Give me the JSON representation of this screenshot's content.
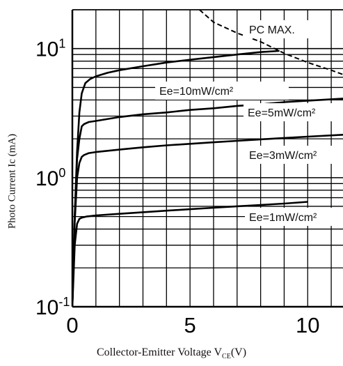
{
  "chart_data": {
    "type": "line",
    "xlabel": "Collector-Emitter Voltage V_CE(V)",
    "ylabel": "Photo Current Ic (mA)",
    "xlabel_parts": {
      "main": "Collector-Emitter Voltage V",
      "sub": "CE",
      "unit": "(V)"
    },
    "y_scale": "log",
    "xlim": [
      0,
      11.5
    ],
    "ylim": [
      0.1,
      20
    ],
    "grid": true,
    "x_ticks": [
      {
        "value": 0,
        "label": "0"
      },
      {
        "value": 5,
        "label": "5"
      },
      {
        "value": 10,
        "label": "10"
      }
    ],
    "y_ticks": [
      {
        "value": 0.1,
        "base": "10",
        "exp": "-1"
      },
      {
        "value": 1,
        "base": "10",
        "exp": "0"
      },
      {
        "value": 10,
        "base": "10",
        "exp": "1"
      }
    ],
    "series": [
      {
        "name": "Ee=10mW/cm²",
        "x": [
          0,
          0.1,
          0.2,
          0.3,
          0.4,
          0.55,
          0.75,
          1.0,
          1.5,
          2,
          3,
          4,
          5,
          6,
          7,
          8,
          8.8
        ],
        "y": [
          0.1,
          0.5,
          1.6,
          3.2,
          4.5,
          5.4,
          5.8,
          6.1,
          6.5,
          6.8,
          7.3,
          7.8,
          8.2,
          8.6,
          9.0,
          9.4,
          9.6
        ]
      },
      {
        "name": "Ee=5mW/cm²",
        "x": [
          0,
          0.1,
          0.2,
          0.3,
          0.4,
          0.5,
          0.7,
          1.0,
          2,
          3,
          4,
          5,
          6,
          7,
          8,
          9,
          10,
          11.5
        ],
        "y": [
          0.1,
          0.5,
          1.4,
          2.0,
          2.5,
          2.6,
          2.7,
          2.75,
          2.95,
          3.1,
          3.2,
          3.35,
          3.45,
          3.6,
          3.7,
          3.85,
          3.95,
          4.1
        ]
      },
      {
        "name": "Ee=3mW/cm²",
        "x": [
          0,
          0.1,
          0.2,
          0.3,
          0.4,
          0.5,
          0.7,
          1.0,
          2,
          3,
          4,
          5,
          6,
          7,
          8,
          9,
          10,
          11.5
        ],
        "y": [
          0.1,
          0.45,
          1.0,
          1.3,
          1.45,
          1.5,
          1.55,
          1.58,
          1.65,
          1.72,
          1.78,
          1.83,
          1.88,
          1.93,
          1.98,
          2.03,
          2.08,
          2.15
        ]
      },
      {
        "name": "Ee=1mW/cm²",
        "x": [
          0,
          0.1,
          0.2,
          0.3,
          0.4,
          0.6,
          1.0,
          2,
          3,
          4,
          5,
          6,
          7,
          8,
          9,
          10
        ],
        "y": [
          0.1,
          0.3,
          0.44,
          0.48,
          0.49,
          0.5,
          0.51,
          0.525,
          0.54,
          0.555,
          0.57,
          0.585,
          0.6,
          0.615,
          0.63,
          0.65
        ]
      },
      {
        "name": "PC MAX.",
        "dashed": true,
        "x": [
          5.4,
          6,
          7,
          8,
          9,
          10,
          11,
          11.5
        ],
        "y": [
          20,
          16,
          13.2,
          11.3,
          9.2,
          7.8,
          6.8,
          6.3
        ]
      }
    ],
    "annotations": [
      {
        "text": "PC MAX.",
        "series": "PC MAX."
      },
      {
        "text": "Ee=10mW/cm²",
        "series": "Ee=10mW/cm²"
      },
      {
        "text": "Ee=5mW/cm²",
        "series": "Ee=5mW/cm²"
      },
      {
        "text": "Ee=3mW/cm²",
        "series": "Ee=3mW/cm²"
      },
      {
        "text": "Ee=1mW/cm²",
        "series": "Ee=1mW/cm²"
      }
    ]
  }
}
